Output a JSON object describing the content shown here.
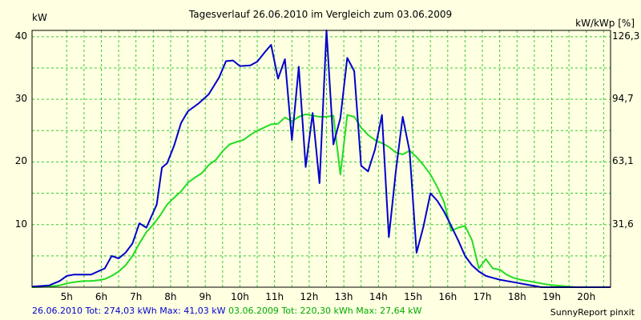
{
  "chart_data": {
    "type": "line",
    "title": "Tagesverlauf 26.06.2010 im Vergleich zum 03.06.2009",
    "ylabel_left": "kW",
    "ylabel_right": "kW/kWp [%]",
    "ylim": [
      0,
      41
    ],
    "grid": true,
    "x_ticks": [
      "5h",
      "6h",
      "7h",
      "8h",
      "9h",
      "10h",
      "11h",
      "12h",
      "13h",
      "14h",
      "15h",
      "16h",
      "17h",
      "18h",
      "19h",
      "20h"
    ],
    "y_ticks_left": [
      "10",
      "20",
      "30",
      "40"
    ],
    "y_ticks_right": [
      "31,6",
      "63,1",
      "94,7",
      "126,3"
    ],
    "series": [
      {
        "name": "26.06.2010 Tot: 274,03 kWh Max: 41,03 kW",
        "color": "#0000cc",
        "x": [
          4.0,
          4.5,
          4.8,
          5.0,
          5.2,
          5.5,
          5.7,
          5.9,
          6.1,
          6.2,
          6.3,
          6.5,
          6.7,
          6.9,
          7.1,
          7.3,
          7.6,
          7.75,
          7.9,
          8.1,
          8.3,
          8.5,
          8.8,
          9.1,
          9.4,
          9.6,
          9.8,
          10.0,
          10.3,
          10.5,
          10.7,
          10.9,
          11.1,
          11.3,
          11.5,
          11.7,
          11.9,
          12.1,
          12.3,
          12.5,
          12.7,
          12.9,
          13.1,
          13.3,
          13.5,
          13.7,
          13.9,
          14.1,
          14.3,
          14.5,
          14.7,
          14.9,
          15.1,
          15.3,
          15.5,
          15.7,
          15.9,
          16.1,
          16.3,
          16.5,
          16.7,
          16.9,
          17.1,
          17.3,
          17.5,
          17.7,
          17.9,
          18.1,
          18.3,
          18.5,
          18.7,
          18.9,
          19.1,
          19.3,
          19.5,
          19.7,
          19.9,
          20.1,
          20.3,
          20.5,
          20.7
        ],
        "values": [
          0.1,
          0.3,
          1.0,
          1.8,
          2.0,
          2.0,
          2.0,
          2.5,
          3.0,
          4.0,
          5.0,
          4.6,
          5.5,
          7.0,
          10.2,
          9.5,
          13.2,
          19.1,
          19.8,
          22.6,
          26.2,
          28.1,
          29.3,
          30.8,
          33.5,
          36.1,
          36.2,
          35.3,
          35.4,
          36.0,
          37.4,
          38.7,
          33.3,
          36.4,
          23.5,
          35.2,
          19.2,
          27.8,
          16.6,
          41.0,
          22.8,
          27.0,
          36.6,
          34.5,
          19.4,
          18.5,
          22.0,
          27.5,
          8.0,
          18.5,
          27.2,
          21.7,
          5.5,
          9.7,
          15.0,
          13.8,
          12.0,
          9.8,
          7.5,
          5.0,
          3.5,
          2.5,
          1.8,
          1.5,
          1.2,
          1.0,
          0.8,
          0.6,
          0.4,
          0.2,
          0.0,
          0.0,
          0.0,
          0.0,
          0.0,
          0.0,
          0.0,
          0.0,
          0.0,
          0.0,
          0.0
        ]
      },
      {
        "name": "03.06.2009 Tot: 220,30 kWh Max: 27,64 kW",
        "color": "#22dd22",
        "x": [
          4.0,
          4.5,
          4.8,
          5.0,
          5.2,
          5.5,
          5.7,
          5.9,
          6.1,
          6.3,
          6.5,
          6.7,
          6.9,
          7.1,
          7.3,
          7.5,
          7.7,
          7.9,
          8.1,
          8.3,
          8.5,
          8.7,
          8.9,
          9.1,
          9.3,
          9.5,
          9.7,
          9.9,
          10.1,
          10.3,
          10.5,
          10.7,
          10.9,
          11.1,
          11.3,
          11.5,
          11.7,
          11.9,
          12.1,
          12.3,
          12.5,
          12.7,
          12.9,
          13.1,
          13.3,
          13.5,
          13.7,
          13.9,
          14.1,
          14.3,
          14.5,
          14.7,
          14.9,
          15.1,
          15.3,
          15.5,
          15.7,
          15.9,
          16.1,
          16.3,
          16.5,
          16.7,
          16.9,
          17.1,
          17.3,
          17.5,
          17.7,
          17.9,
          18.1,
          18.3,
          18.5,
          18.7,
          18.9,
          19.1,
          19.3,
          19.5,
          19.7,
          19.9,
          20.1,
          20.3,
          20.5,
          20.7
        ],
        "values": [
          0.0,
          0.1,
          0.3,
          0.6,
          0.8,
          1.0,
          1.0,
          1.1,
          1.3,
          1.8,
          2.5,
          3.5,
          5.0,
          7.0,
          8.8,
          10.0,
          11.5,
          13.2,
          14.3,
          15.3,
          16.7,
          17.5,
          18.2,
          19.5,
          20.3,
          21.7,
          22.8,
          23.2,
          23.5,
          24.3,
          25.0,
          25.5,
          26.0,
          26.1,
          27.1,
          26.5,
          27.2,
          27.6,
          27.4,
          27.2,
          27.2,
          27.4,
          18.0,
          27.5,
          27.2,
          25.5,
          24.3,
          23.5,
          23.0,
          22.4,
          21.5,
          21.2,
          21.8,
          20.8,
          19.5,
          18.0,
          16.0,
          13.5,
          9.0,
          9.5,
          9.8,
          7.5,
          3.0,
          4.5,
          3.0,
          2.8,
          2.0,
          1.5,
          1.2,
          1.0,
          0.8,
          0.6,
          0.4,
          0.3,
          0.2,
          0.1,
          0.0,
          0.0,
          0.0,
          0.0,
          0.0,
          0.0
        ]
      }
    ],
    "footer": {
      "series1_text": "26.06.2010 Tot: 274,03 kWh Max: 41,03 kW",
      "series2_text": "03.06.2009 Tot: 220,30 kWh Max: 27,64 kW"
    },
    "credit": "SunnyReport pinxit"
  }
}
